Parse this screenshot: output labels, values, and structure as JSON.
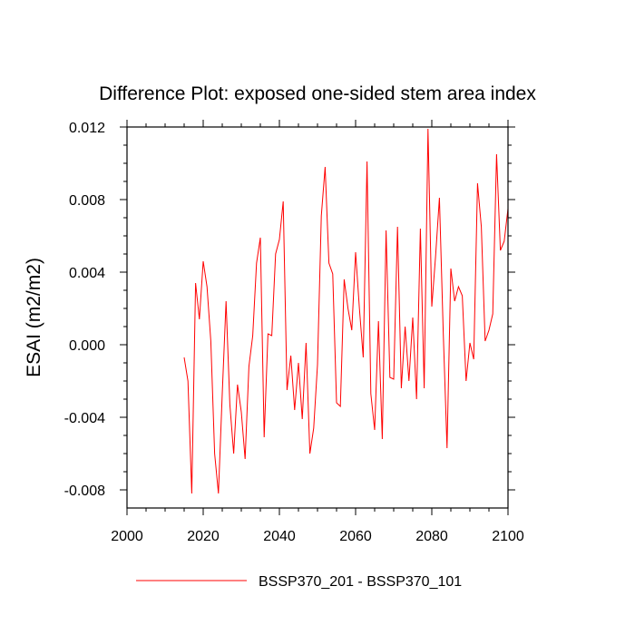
{
  "chart_data": {
    "type": "line",
    "title": "Difference Plot: exposed one-sided stem area index",
    "xlabel": "",
    "ylabel": "ESAI  (m2/m2)",
    "xlim": [
      2000,
      2100
    ],
    "ylim": [
      -0.009,
      0.012
    ],
    "xticks": [
      2000,
      2020,
      2040,
      2060,
      2080,
      2100
    ],
    "xtick_labels": [
      "2000",
      "2020",
      "2040",
      "2060",
      "2080",
      "2100"
    ],
    "yticks": [
      -0.008,
      -0.004,
      0.0,
      0.004,
      0.008,
      0.012
    ],
    "ytick_labels": [
      "-0.008",
      "-0.004",
      "0.000",
      "0.004",
      "0.008",
      "0.012"
    ],
    "grid": false,
    "legend_position": "bottom",
    "series": [
      {
        "name": "BSSP370_201 - BSSP370_101",
        "color": "#ff0000",
        "x": [
          2015,
          2016,
          2017,
          2018,
          2019,
          2020,
          2021,
          2022,
          2023,
          2024,
          2025,
          2026,
          2027,
          2028,
          2029,
          2030,
          2031,
          2032,
          2033,
          2034,
          2035,
          2036,
          2037,
          2038,
          2039,
          2040,
          2041,
          2042,
          2043,
          2044,
          2045,
          2046,
          2047,
          2048,
          2049,
          2050,
          2051,
          2052,
          2053,
          2054,
          2055,
          2056,
          2057,
          2058,
          2059,
          2060,
          2061,
          2062,
          2063,
          2064,
          2065,
          2066,
          2067,
          2068,
          2069,
          2070,
          2071,
          2072,
          2073,
          2074,
          2075,
          2076,
          2077,
          2078,
          2079,
          2080,
          2081,
          2082,
          2083,
          2084,
          2085,
          2086,
          2087,
          2088,
          2089,
          2090,
          2091,
          2092,
          2093,
          2094,
          2095,
          2096,
          2097,
          2098,
          2099,
          2100
        ],
        "values": [
          -0.0007,
          -0.002,
          -0.0082,
          0.0034,
          0.0014,
          0.0046,
          0.0032,
          0.0002,
          -0.006,
          -0.0082,
          -0.0027,
          0.0024,
          -0.0033,
          -0.006,
          -0.0022,
          -0.0037,
          -0.0063,
          -0.0012,
          0.0005,
          0.0045,
          0.0059,
          -0.0051,
          0.0006,
          0.0005,
          0.005,
          0.0058,
          0.0079,
          -0.0025,
          -0.0006,
          -0.0036,
          -0.001,
          -0.0041,
          0.0001,
          -0.006,
          -0.0046,
          -0.0011,
          0.0071,
          0.0098,
          0.0045,
          0.0039,
          -0.0032,
          -0.0034,
          0.0036,
          0.002,
          0.0008,
          0.0051,
          0.002,
          -0.0007,
          0.0101,
          -0.0027,
          -0.0047,
          0.0013,
          -0.0052,
          0.0063,
          -0.0018,
          -0.0019,
          0.0065,
          -0.0024,
          0.001,
          -0.002,
          0.0015,
          -0.003,
          0.0064,
          -0.0024,
          0.0119,
          0.0021,
          0.0049,
          0.0081,
          0.0007,
          -0.0057,
          0.0042,
          0.0024,
          0.0032,
          0.0027,
          -0.002,
          0.0001,
          -0.0008,
          0.0089,
          0.0065,
          0.0002,
          0.0008,
          0.0017,
          0.0105,
          0.0052,
          0.0057,
          0.0075
        ]
      }
    ]
  }
}
